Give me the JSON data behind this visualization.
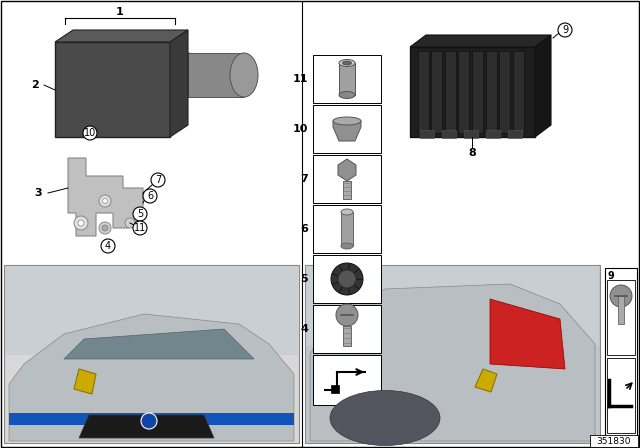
{
  "bg_color": "#ffffff",
  "part_number": "351830",
  "dark_unit_color": "#4a4a4a",
  "dark_unit_edge": "#222222",
  "medium_gray": "#787878",
  "light_gray": "#b8b8b8",
  "bracket_color": "#c0c0c0",
  "bracket_edge": "#888888",
  "ecu_color": "#2a2a2a",
  "ecu_edge": "#111111",
  "yellow_color": "#ccaa00",
  "blue_color": "#1155bb",
  "red_color": "#cc2222",
  "car_body_color": "#b8bcbc",
  "photo_bg": "#c8caca",
  "white": "#ffffff",
  "black": "#000000"
}
